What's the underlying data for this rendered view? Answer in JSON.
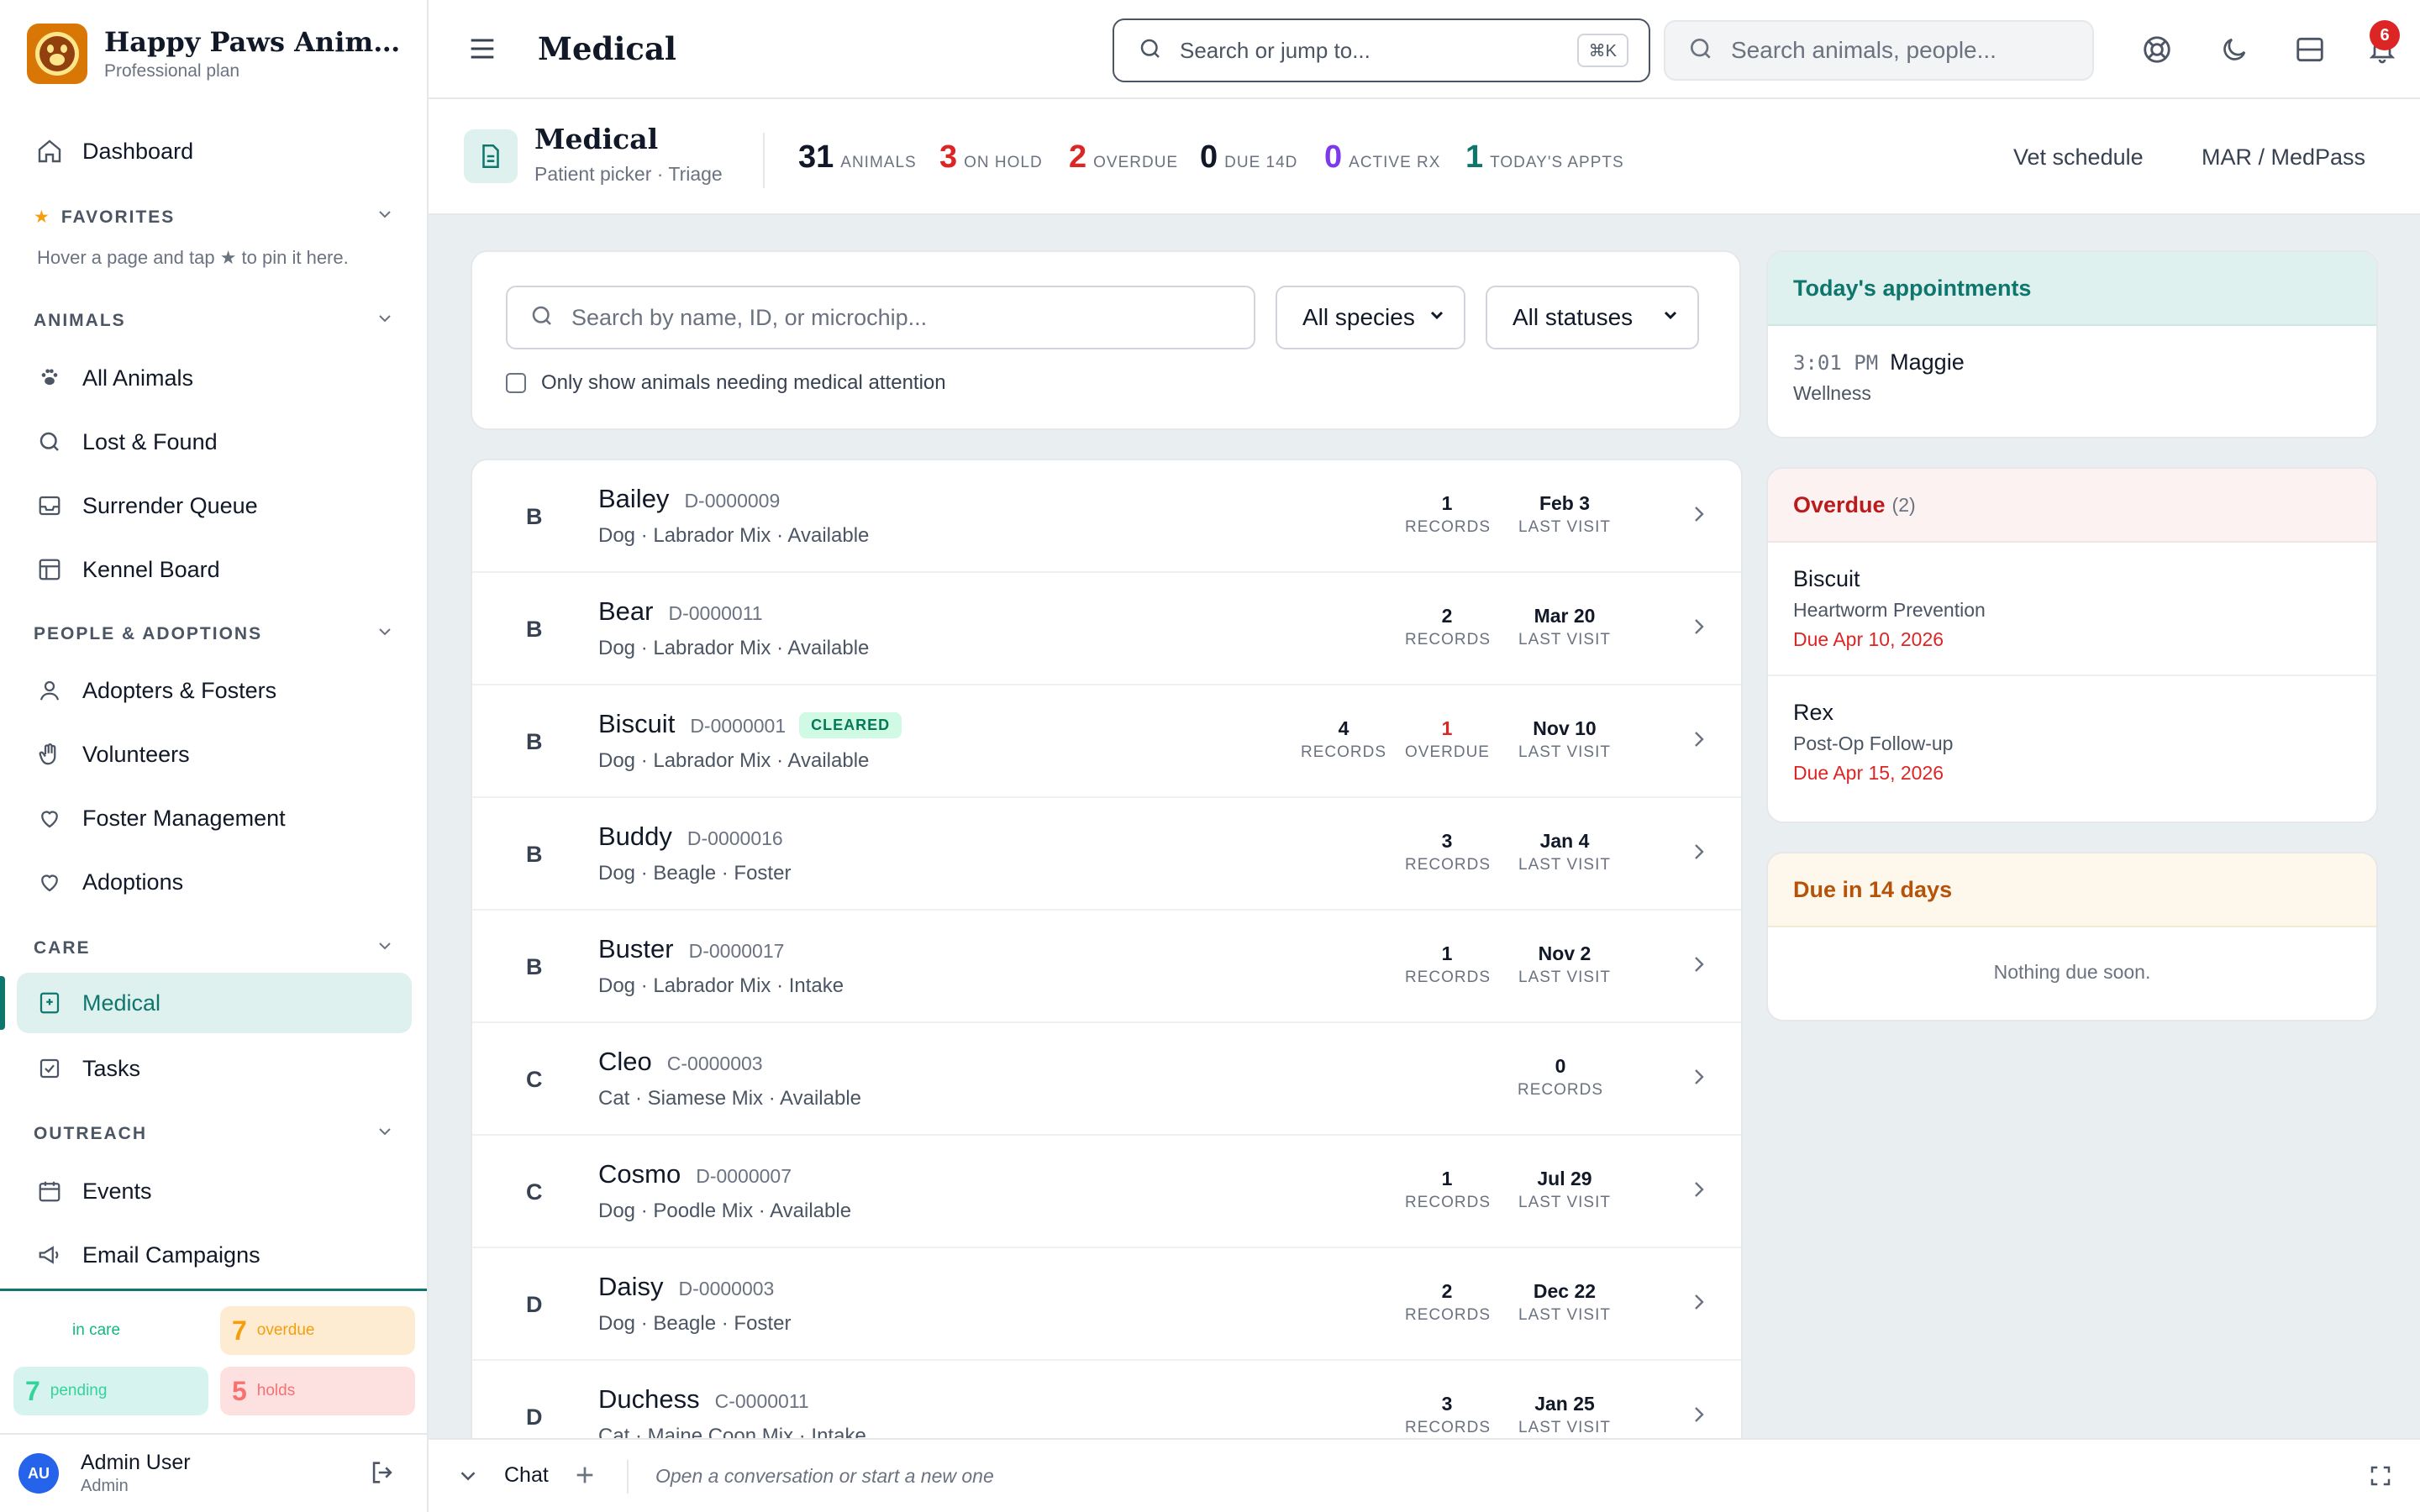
{
  "brand": {
    "name": "Happy Paws Animal ...",
    "plan": "Professional plan"
  },
  "sidebar": {
    "dashboard": "Dashboard",
    "favorites": {
      "title": "FAVORITES",
      "hint": "Hover a page and tap ★ to pin it here."
    },
    "sections": {
      "animals": "ANIMALS",
      "people": "PEOPLE & ADOPTIONS",
      "care": "CARE",
      "outreach": "OUTREACH"
    },
    "items": {
      "all_animals": "All Animals",
      "lost_found": "Lost & Found",
      "surrender_queue": "Surrender Queue",
      "kennel_board": "Kennel Board",
      "adopters": "Adopters & Fosters",
      "volunteers": "Volunteers",
      "foster_mgmt": "Foster Management",
      "adoptions": "Adoptions",
      "medical": "Medical",
      "tasks": "Tasks",
      "events": "Events",
      "email_campaigns": "Email Campaigns"
    },
    "stats": {
      "in_care": {
        "label": "in care"
      },
      "overdue": {
        "n": "7",
        "label": "overdue"
      },
      "pending": {
        "n": "7",
        "label": "pending"
      },
      "holds": {
        "n": "5",
        "label": "holds"
      }
    },
    "user": {
      "initials": "AU",
      "name": "Admin User",
      "role": "Admin"
    }
  },
  "topbar": {
    "title": "Medical",
    "jump_placeholder": "Search or jump to...",
    "shortcut": "⌘K",
    "animal_search_placeholder": "Search animals, people...",
    "notifications": "6"
  },
  "header": {
    "title": "Medical",
    "subtitle": "Patient picker · Triage",
    "metrics": [
      {
        "n": "31",
        "label": "ANIMALS",
        "color": "#111827"
      },
      {
        "n": "3",
        "label": "ON HOLD",
        "color": "#dc2626"
      },
      {
        "n": "2",
        "label": "OVERDUE",
        "color": "#dc2626"
      },
      {
        "n": "0",
        "label": "DUE 14D",
        "color": "#111827"
      },
      {
        "n": "0",
        "label": "ACTIVE RX",
        "color": "#7c3aed"
      },
      {
        "n": "1",
        "label": "TODAY'S APPTS",
        "color": "#0f766e"
      }
    ],
    "links": {
      "vet": "Vet schedule",
      "mar": "MAR / MedPass"
    }
  },
  "filters": {
    "search_placeholder": "Search by name, ID, or microchip...",
    "species": "All species",
    "statuses": "All statuses",
    "checkbox_label": "Only show animals needing medical attention"
  },
  "animals": [
    {
      "letter": "B",
      "name": "Bailey",
      "id": "D-0000009",
      "sub": "Dog · Labrador Mix · Available",
      "records": "1",
      "records_label": "RECORDS",
      "last": "Feb 3",
      "last_label": "LAST VISIT"
    },
    {
      "letter": "B",
      "name": "Bear",
      "id": "D-0000011",
      "sub": "Dog · Labrador Mix · Available",
      "records": "2",
      "records_label": "RECORDS",
      "last": "Mar 20",
      "last_label": "LAST VISIT"
    },
    {
      "letter": "B",
      "name": "Biscuit",
      "id": "D-0000001",
      "badge": "CLEARED",
      "sub": "Dog · Labrador Mix · Available",
      "records": "4",
      "records_label": "RECORDS",
      "overdue": "1",
      "overdue_label": "OVERDUE",
      "last": "Nov 10",
      "last_label": "LAST VISIT"
    },
    {
      "letter": "B",
      "name": "Buddy",
      "id": "D-0000016",
      "sub": "Dog · Beagle · Foster",
      "records": "3",
      "records_label": "RECORDS",
      "last": "Jan 4",
      "last_label": "LAST VISIT"
    },
    {
      "letter": "B",
      "name": "Buster",
      "id": "D-0000017",
      "sub": "Dog · Labrador Mix · Intake",
      "records": "1",
      "records_label": "RECORDS",
      "last": "Nov 2",
      "last_label": "LAST VISIT"
    },
    {
      "letter": "C",
      "name": "Cleo",
      "id": "C-0000003",
      "sub": "Cat · Siamese Mix · Available",
      "records": "0",
      "records_label": "RECORDS"
    },
    {
      "letter": "C",
      "name": "Cosmo",
      "id": "D-0000007",
      "sub": "Dog · Poodle Mix · Available",
      "records": "1",
      "records_label": "RECORDS",
      "last": "Jul 29",
      "last_label": "LAST VISIT"
    },
    {
      "letter": "D",
      "name": "Daisy",
      "id": "D-0000003",
      "sub": "Dog · Beagle · Foster",
      "records": "2",
      "records_label": "RECORDS",
      "last": "Dec 22",
      "last_label": "LAST VISIT"
    },
    {
      "letter": "D",
      "name": "Duchess",
      "id": "C-0000011",
      "sub": "Cat · Maine Coon Mix · Intake",
      "records": "3",
      "records_label": "RECORDS",
      "last": "Jan 25",
      "last_label": "LAST VISIT"
    }
  ],
  "appointments": {
    "title": "Today's appointments",
    "items": [
      {
        "time": "3:01 PM",
        "name": "Maggie",
        "type": "Wellness"
      }
    ]
  },
  "overdue": {
    "title": "Overdue",
    "count": "(2)",
    "items": [
      {
        "name": "Biscuit",
        "item": "Heartworm Prevention",
        "due": "Due Apr 10, 2026"
      },
      {
        "name": "Rex",
        "item": "Post-Op Follow-up",
        "due": "Due Apr 15, 2026"
      }
    ]
  },
  "due14": {
    "title": "Due in 14 days",
    "empty": "Nothing due soon."
  },
  "chat": {
    "label": "Chat",
    "placeholder": "Open a conversation or start a new one"
  },
  "colors": {
    "accent": "#0f766e",
    "danger": "#dc2626",
    "warning": "#b45309"
  }
}
